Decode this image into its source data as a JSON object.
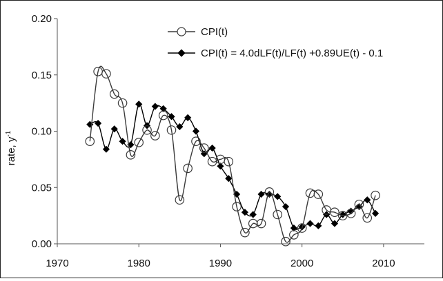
{
  "chart_data": {
    "type": "line",
    "ylabel": "rate, y",
    "ylabel_superscript": "-1",
    "xlim": [
      1970,
      2015
    ],
    "ylim": [
      0,
      0.2
    ],
    "xticks": [
      "1970",
      "1980",
      "1990",
      "2000",
      "2010"
    ],
    "yticks": [
      "0.00",
      "0.05",
      "0.10",
      "0.15",
      "0.20"
    ],
    "grid": false,
    "legend_position": "top-right",
    "series": [
      {
        "name": "CPI(t)",
        "marker": "open-circle",
        "color": "#3a3a3a",
        "x": [
          1974,
          1975,
          1976,
          1977,
          1978,
          1979,
          1980,
          1981,
          1982,
          1983,
          1984,
          1985,
          1986,
          1987,
          1988,
          1989,
          1990,
          1991,
          1992,
          1993,
          1994,
          1995,
          1996,
          1997,
          1998,
          1999,
          2000,
          2001,
          2002,
          2003,
          2004,
          2005,
          2006,
          2007,
          2008,
          2009
        ],
        "values": [
          0.091,
          0.153,
          0.151,
          0.133,
          0.125,
          0.079,
          0.09,
          0.101,
          0.096,
          0.114,
          0.101,
          0.039,
          0.067,
          0.091,
          0.085,
          0.073,
          0.075,
          0.073,
          0.033,
          0.01,
          0.018,
          0.018,
          0.046,
          0.026,
          0.002,
          0.008,
          0.014,
          0.045,
          0.044,
          0.03,
          0.028,
          0.025,
          0.027,
          0.035,
          0.023,
          0.043
        ]
      },
      {
        "name": "CPI(t) = 4.0dLF(t)/LF(t) +0.89UE(t) - 0.1",
        "marker": "filled-diamond",
        "color": "#000000",
        "x": [
          1974,
          1975,
          1976,
          1977,
          1978,
          1979,
          1980,
          1981,
          1982,
          1983,
          1984,
          1985,
          1986,
          1987,
          1988,
          1989,
          1990,
          1991,
          1992,
          1993,
          1994,
          1995,
          1996,
          1997,
          1998,
          1999,
          2000,
          2001,
          2002,
          2003,
          2004,
          2005,
          2006,
          2007,
          2008,
          2009
        ],
        "values": [
          0.106,
          0.107,
          0.084,
          0.102,
          0.091,
          0.088,
          0.124,
          0.105,
          0.122,
          0.12,
          0.113,
          0.104,
          0.112,
          0.1,
          0.08,
          0.085,
          0.069,
          0.058,
          0.044,
          0.028,
          0.026,
          0.044,
          0.044,
          0.042,
          0.033,
          0.014,
          0.015,
          0.018,
          0.016,
          0.026,
          0.018,
          0.026,
          0.029,
          0.033,
          0.039,
          0.027
        ]
      }
    ]
  }
}
